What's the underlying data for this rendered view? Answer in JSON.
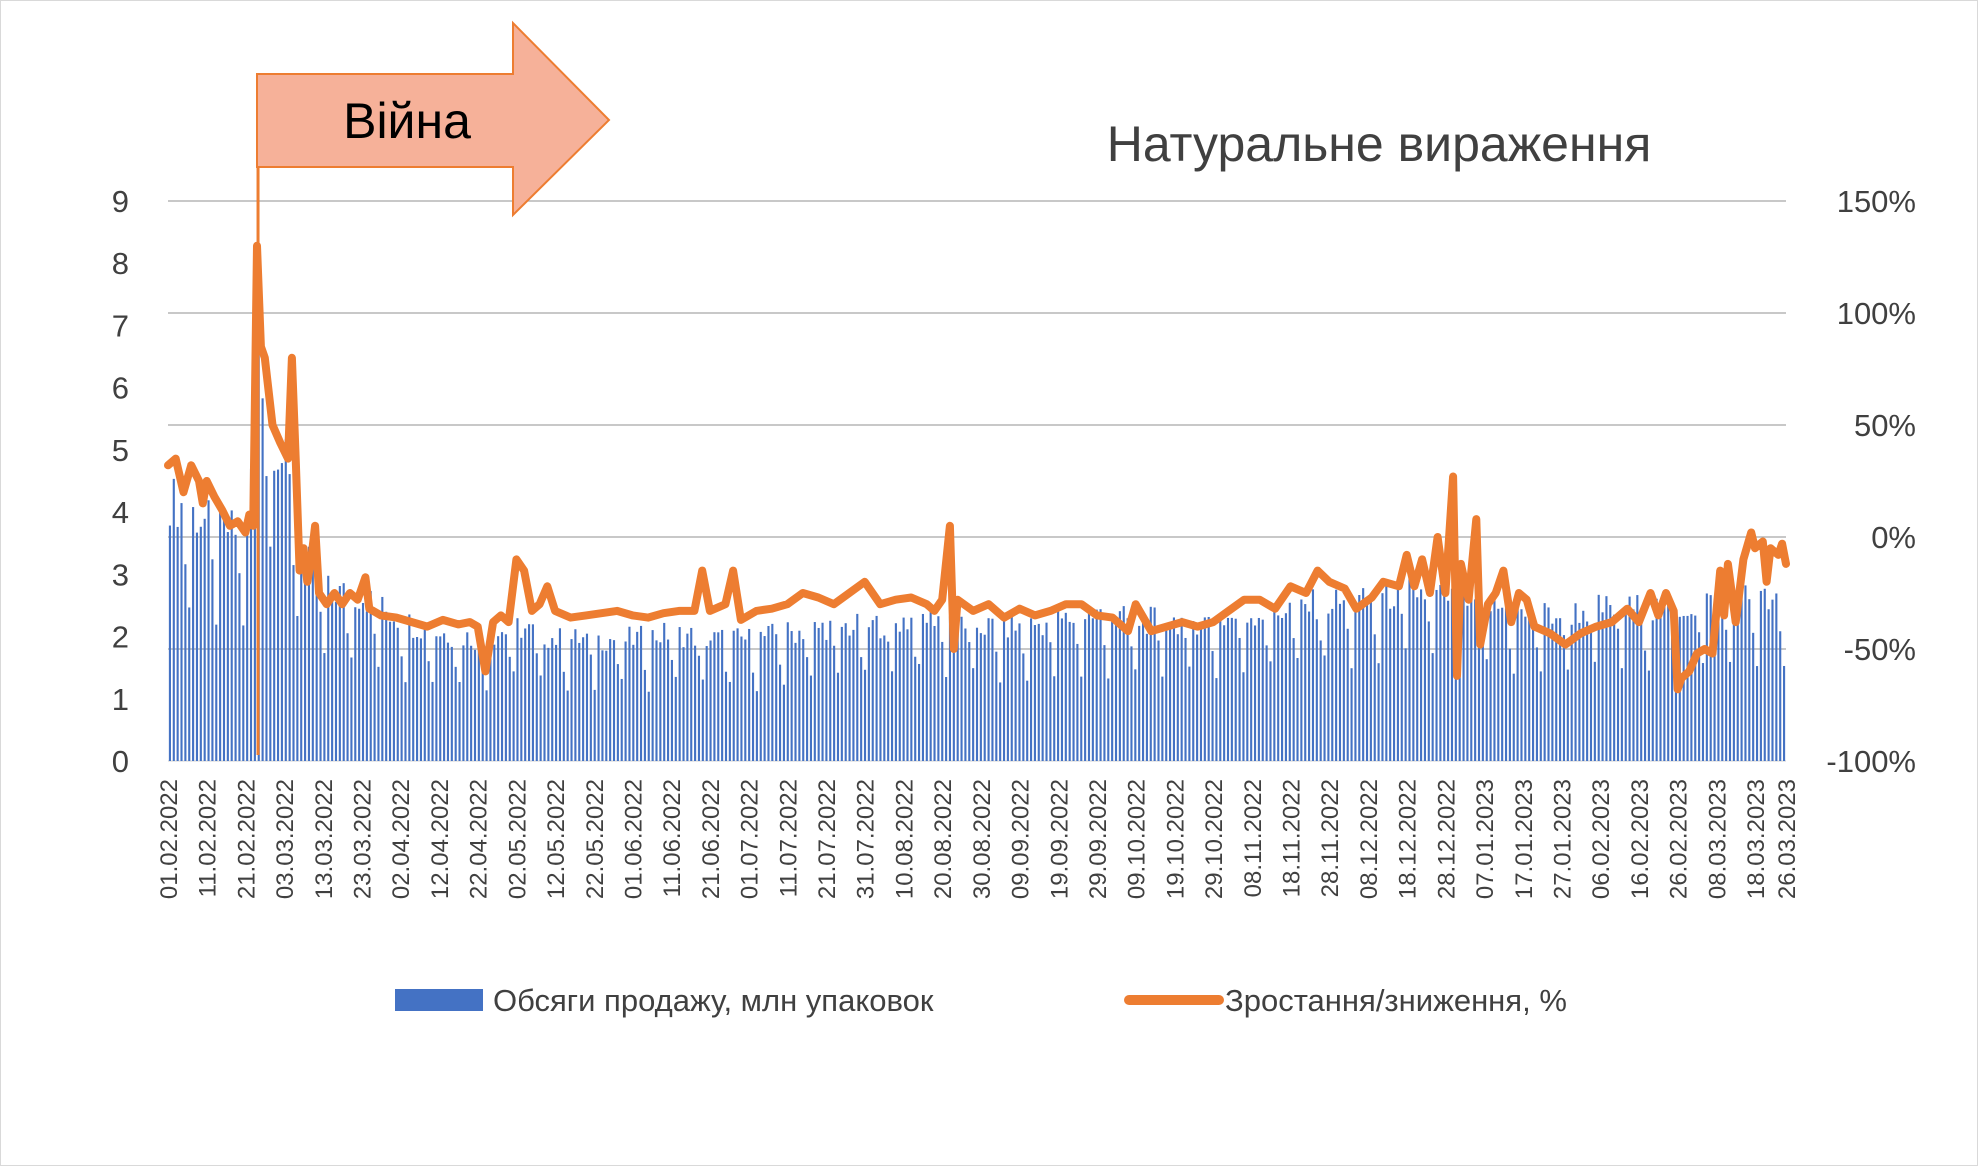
{
  "chart_data": {
    "type": "bar+line",
    "title": "Натуральне вираження",
    "annotation": "Війна",
    "annotation_date": "24.02.2022",
    "legend_position": "bottom",
    "grid": true,
    "y_left": {
      "min": 0,
      "max": 9,
      "ticks": [
        "0",
        "1",
        "2",
        "3",
        "4",
        "5",
        "6",
        "7",
        "8",
        "9"
      ]
    },
    "y_right": {
      "min": -100,
      "max": 150,
      "ticks": [
        "-100%",
        "-50%",
        "0%",
        "50%",
        "100%",
        "150%"
      ]
    },
    "x_start_date": "01.02.2022",
    "x_end_date": "26.03.2023",
    "x_tick_labels": [
      "01.02.2022",
      "11.02.2022",
      "21.02.2022",
      "03.03.2022",
      "13.03.2022",
      "23.03.2022",
      "02.04.2022",
      "12.04.2022",
      "22.04.2022",
      "02.05.2022",
      "12.05.2022",
      "22.05.2022",
      "01.06.2022",
      "11.06.2022",
      "21.06.2022",
      "01.07.2022",
      "11.07.2022",
      "21.07.2022",
      "31.07.2022",
      "10.08.2022",
      "20.08.2022",
      "30.08.2022",
      "09.09.2022",
      "19.09.2022",
      "29.09.2022",
      "09.10.2022",
      "19.10.2022",
      "29.10.2022",
      "08.11.2022",
      "18.11.2022",
      "28.11.2022",
      "08.12.2022",
      "18.12.2022",
      "28.12.2022",
      "07.01.2023",
      "17.01.2023",
      "27.01.2023",
      "06.02.2023",
      "16.02.2023",
      "26.02.2023",
      "08.03.2023",
      "18.03.2023",
      "26.03.2023"
    ],
    "series": [
      {
        "name": "Обсяги продажу, млн упаковок",
        "kind": "bar",
        "color": "#4472c4",
        "daily_values": "varies",
        "values": [
          {
            "x": "01.02.2022",
            "y": 4.3
          },
          {
            "x": "11.02.2022",
            "y": 3.9
          },
          {
            "x": "21.02.2022",
            "y": 3.7
          },
          {
            "x": "24.02.2022",
            "y": 6.8
          },
          {
            "x": "28.02.2022",
            "y": 5.3
          },
          {
            "x": "03.03.2022",
            "y": 4.8
          },
          {
            "x": "08.03.2022",
            "y": 3.3
          },
          {
            "x": "13.03.2022",
            "y": 2.8
          },
          {
            "x": "23.03.2022",
            "y": 2.7
          },
          {
            "x": "02.04.2022",
            "y": 2.3
          },
          {
            "x": "12.04.2022",
            "y": 2.1
          },
          {
            "x": "22.04.2022",
            "y": 2.0
          },
          {
            "x": "02.05.2022",
            "y": 2.2
          },
          {
            "x": "12.05.2022",
            "y": 2.0
          },
          {
            "x": "22.05.2022",
            "y": 2.0
          },
          {
            "x": "01.06.2022",
            "y": 2.0
          },
          {
            "x": "11.06.2022",
            "y": 2.1
          },
          {
            "x": "21.06.2022",
            "y": 2.0
          },
          {
            "x": "01.07.2022",
            "y": 2.0
          },
          {
            "x": "11.07.2022",
            "y": 2.1
          },
          {
            "x": "21.07.2022",
            "y": 2.2
          },
          {
            "x": "31.07.2022",
            "y": 2.2
          },
          {
            "x": "10.08.2022",
            "y": 2.3
          },
          {
            "x": "20.08.2022",
            "y": 2.4
          },
          {
            "x": "30.08.2022",
            "y": 2.2
          },
          {
            "x": "09.09.2022",
            "y": 2.2
          },
          {
            "x": "19.09.2022",
            "y": 2.3
          },
          {
            "x": "29.09.2022",
            "y": 2.4
          },
          {
            "x": "09.10.2022",
            "y": 2.3
          },
          {
            "x": "19.10.2022",
            "y": 2.3
          },
          {
            "x": "29.10.2022",
            "y": 2.3
          },
          {
            "x": "08.11.2022",
            "y": 2.4
          },
          {
            "x": "18.11.2022",
            "y": 2.5
          },
          {
            "x": "28.11.2022",
            "y": 2.6
          },
          {
            "x": "08.12.2022",
            "y": 2.6
          },
          {
            "x": "18.12.2022",
            "y": 2.8
          },
          {
            "x": "28.12.2022",
            "y": 2.7
          },
          {
            "x": "07.01.2023",
            "y": 2.6
          },
          {
            "x": "17.01.2023",
            "y": 2.4
          },
          {
            "x": "27.01.2023",
            "y": 2.4
          },
          {
            "x": "06.02.2023",
            "y": 2.5
          },
          {
            "x": "16.02.2023",
            "y": 2.5
          },
          {
            "x": "26.02.2023",
            "y": 2.5
          },
          {
            "x": "08.03.2023",
            "y": 2.6
          },
          {
            "x": "18.03.2023",
            "y": 2.7
          },
          {
            "x": "26.03.2023",
            "y": 2.5
          }
        ]
      },
      {
        "name": "Зростання/зниження, %",
        "kind": "line",
        "color": "#ed7d31",
        "values": [
          {
            "x": "01.02.2022",
            "y": 32
          },
          {
            "x": "03.02.2022",
            "y": 35
          },
          {
            "x": "05.02.2022",
            "y": 20
          },
          {
            "x": "07.02.2022",
            "y": 32
          },
          {
            "x": "09.02.2022",
            "y": 25
          },
          {
            "x": "10.02.2022",
            "y": 15
          },
          {
            "x": "11.02.2022",
            "y": 25
          },
          {
            "x": "13.02.2022",
            "y": 18
          },
          {
            "x": "15.02.2022",
            "y": 12
          },
          {
            "x": "17.02.2022",
            "y": 5
          },
          {
            "x": "19.02.2022",
            "y": 7
          },
          {
            "x": "21.02.2022",
            "y": 2
          },
          {
            "x": "22.02.2022",
            "y": 10
          },
          {
            "x": "23.02.2022",
            "y": 5
          },
          {
            "x": "24.02.2022",
            "y": 130
          },
          {
            "x": "25.02.2022",
            "y": 85
          },
          {
            "x": "26.02.2022",
            "y": 80
          },
          {
            "x": "28.02.2022",
            "y": 50
          },
          {
            "x": "02.03.2022",
            "y": 42
          },
          {
            "x": "04.03.2022",
            "y": 35
          },
          {
            "x": "05.03.2022",
            "y": 80
          },
          {
            "x": "06.03.2022",
            "y": 35
          },
          {
            "x": "07.03.2022",
            "y": -15
          },
          {
            "x": "08.03.2022",
            "y": -5
          },
          {
            "x": "09.03.2022",
            "y": -20
          },
          {
            "x": "10.03.2022",
            "y": -10
          },
          {
            "x": "11.03.2022",
            "y": 5
          },
          {
            "x": "12.03.2022",
            "y": -25
          },
          {
            "x": "14.03.2022",
            "y": -30
          },
          {
            "x": "16.03.2022",
            "y": -25
          },
          {
            "x": "18.03.2022",
            "y": -30
          },
          {
            "x": "20.03.2022",
            "y": -25
          },
          {
            "x": "22.03.2022",
            "y": -28
          },
          {
            "x": "24.03.2022",
            "y": -18
          },
          {
            "x": "25.03.2022",
            "y": -32
          },
          {
            "x": "28.03.2022",
            "y": -35
          },
          {
            "x": "01.04.2022",
            "y": -36
          },
          {
            "x": "05.04.2022",
            "y": -38
          },
          {
            "x": "09.04.2022",
            "y": -40
          },
          {
            "x": "13.04.2022",
            "y": -37
          },
          {
            "x": "17.04.2022",
            "y": -39
          },
          {
            "x": "20.04.2022",
            "y": -38
          },
          {
            "x": "22.04.2022",
            "y": -40
          },
          {
            "x": "24.04.2022",
            "y": -60
          },
          {
            "x": "26.04.2022",
            "y": -38
          },
          {
            "x": "28.04.2022",
            "y": -35
          },
          {
            "x": "30.04.2022",
            "y": -38
          },
          {
            "x": "02.05.2022",
            "y": -10
          },
          {
            "x": "04.05.2022",
            "y": -15
          },
          {
            "x": "06.05.2022",
            "y": -33
          },
          {
            "x": "08.05.2022",
            "y": -30
          },
          {
            "x": "10.05.2022",
            "y": -22
          },
          {
            "x": "12.05.2022",
            "y": -33
          },
          {
            "x": "16.05.2022",
            "y": -36
          },
          {
            "x": "20.05.2022",
            "y": -35
          },
          {
            "x": "24.05.2022",
            "y": -34
          },
          {
            "x": "28.05.2022",
            "y": -33
          },
          {
            "x": "01.06.2022",
            "y": -35
          },
          {
            "x": "05.06.2022",
            "y": -36
          },
          {
            "x": "09.06.2022",
            "y": -34
          },
          {
            "x": "13.06.2022",
            "y": -33
          },
          {
            "x": "17.06.2022",
            "y": -33
          },
          {
            "x": "19.06.2022",
            "y": -15
          },
          {
            "x": "21.06.2022",
            "y": -33
          },
          {
            "x": "25.06.2022",
            "y": -30
          },
          {
            "x": "27.06.2022",
            "y": -15
          },
          {
            "x": "29.06.2022",
            "y": -37
          },
          {
            "x": "03.07.2022",
            "y": -33
          },
          {
            "x": "07.07.2022",
            "y": -32
          },
          {
            "x": "11.07.2022",
            "y": -30
          },
          {
            "x": "15.07.2022",
            "y": -25
          },
          {
            "x": "19.07.2022",
            "y": -27
          },
          {
            "x": "23.07.2022",
            "y": -30
          },
          {
            "x": "27.07.2022",
            "y": -25
          },
          {
            "x": "31.07.2022",
            "y": -20
          },
          {
            "x": "04.08.2022",
            "y": -30
          },
          {
            "x": "08.08.2022",
            "y": -28
          },
          {
            "x": "12.08.2022",
            "y": -27
          },
          {
            "x": "16.08.2022",
            "y": -30
          },
          {
            "x": "18.08.2022",
            "y": -33
          },
          {
            "x": "20.08.2022",
            "y": -28
          },
          {
            "x": "22.08.2022",
            "y": 5
          },
          {
            "x": "23.08.2022",
            "y": -50
          },
          {
            "x": "24.08.2022",
            "y": -28
          },
          {
            "x": "28.08.2022",
            "y": -33
          },
          {
            "x": "01.09.2022",
            "y": -30
          },
          {
            "x": "05.09.2022",
            "y": -36
          },
          {
            "x": "09.09.2022",
            "y": -32
          },
          {
            "x": "13.09.2022",
            "y": -35
          },
          {
            "x": "17.09.2022",
            "y": -33
          },
          {
            "x": "21.09.2022",
            "y": -30
          },
          {
            "x": "25.09.2022",
            "y": -30
          },
          {
            "x": "29.09.2022",
            "y": -35
          },
          {
            "x": "03.10.2022",
            "y": -36
          },
          {
            "x": "07.10.2022",
            "y": -42
          },
          {
            "x": "09.10.2022",
            "y": -30
          },
          {
            "x": "13.10.2022",
            "y": -42
          },
          {
            "x": "17.10.2022",
            "y": -40
          },
          {
            "x": "21.10.2022",
            "y": -38
          },
          {
            "x": "25.10.2022",
            "y": -40
          },
          {
            "x": "29.10.2022",
            "y": -38
          },
          {
            "x": "02.11.2022",
            "y": -33
          },
          {
            "x": "06.11.2022",
            "y": -28
          },
          {
            "x": "10.11.2022",
            "y": -28
          },
          {
            "x": "14.11.2022",
            "y": -32
          },
          {
            "x": "18.11.2022",
            "y": -22
          },
          {
            "x": "22.11.2022",
            "y": -25
          },
          {
            "x": "25.11.2022",
            "y": -15
          },
          {
            "x": "28.11.2022",
            "y": -20
          },
          {
            "x": "02.12.2022",
            "y": -23
          },
          {
            "x": "05.12.2022",
            "y": -32
          },
          {
            "x": "09.12.2022",
            "y": -27
          },
          {
            "x": "12.12.2022",
            "y": -20
          },
          {
            "x": "16.12.2022",
            "y": -22
          },
          {
            "x": "18.12.2022",
            "y": -8
          },
          {
            "x": "20.12.2022",
            "y": -22
          },
          {
            "x": "22.12.2022",
            "y": -10
          },
          {
            "x": "24.12.2022",
            "y": -25
          },
          {
            "x": "26.12.2022",
            "y": 0
          },
          {
            "x": "28.12.2022",
            "y": -25
          },
          {
            "x": "30.12.2022",
            "y": 27
          },
          {
            "x": "31.12.2022",
            "y": -62
          },
          {
            "x": "01.01.2023",
            "y": -12
          },
          {
            "x": "03.01.2023",
            "y": -28
          },
          {
            "x": "05.01.2023",
            "y": 8
          },
          {
            "x": "06.01.2023",
            "y": -48
          },
          {
            "x": "08.01.2023",
            "y": -30
          },
          {
            "x": "10.01.2023",
            "y": -25
          },
          {
            "x": "12.01.2023",
            "y": -15
          },
          {
            "x": "14.01.2023",
            "y": -38
          },
          {
            "x": "16.01.2023",
            "y": -25
          },
          {
            "x": "18.01.2023",
            "y": -28
          },
          {
            "x": "20.01.2023",
            "y": -40
          },
          {
            "x": "24.01.2023",
            "y": -43
          },
          {
            "x": "28.01.2023",
            "y": -48
          },
          {
            "x": "01.02.2023",
            "y": -43
          },
          {
            "x": "05.02.2023",
            "y": -40
          },
          {
            "x": "09.02.2023",
            "y": -38
          },
          {
            "x": "13.02.2023",
            "y": -32
          },
          {
            "x": "16.02.2023",
            "y": -38
          },
          {
            "x": "19.02.2023",
            "y": -25
          },
          {
            "x": "21.02.2023",
            "y": -35
          },
          {
            "x": "23.02.2023",
            "y": -25
          },
          {
            "x": "25.02.2023",
            "y": -33
          },
          {
            "x": "26.02.2023",
            "y": -68
          },
          {
            "x": "27.02.2023",
            "y": -63
          },
          {
            "x": "01.03.2023",
            "y": -60
          },
          {
            "x": "03.03.2023",
            "y": -52
          },
          {
            "x": "05.03.2023",
            "y": -50
          },
          {
            "x": "07.03.2023",
            "y": -52
          },
          {
            "x": "09.03.2023",
            "y": -15
          },
          {
            "x": "10.03.2023",
            "y": -35
          },
          {
            "x": "11.03.2023",
            "y": -12
          },
          {
            "x": "13.03.2023",
            "y": -38
          },
          {
            "x": "15.03.2023",
            "y": -10
          },
          {
            "x": "17.03.2023",
            "y": 2
          },
          {
            "x": "18.03.2023",
            "y": -5
          },
          {
            "x": "20.03.2023",
            "y": -2
          },
          {
            "x": "21.03.2023",
            "y": -20
          },
          {
            "x": "22.03.2023",
            "y": -5
          },
          {
            "x": "24.03.2023",
            "y": -8
          },
          {
            "x": "25.03.2023",
            "y": -3
          },
          {
            "x": "26.03.2023",
            "y": -12
          }
        ]
      }
    ]
  }
}
